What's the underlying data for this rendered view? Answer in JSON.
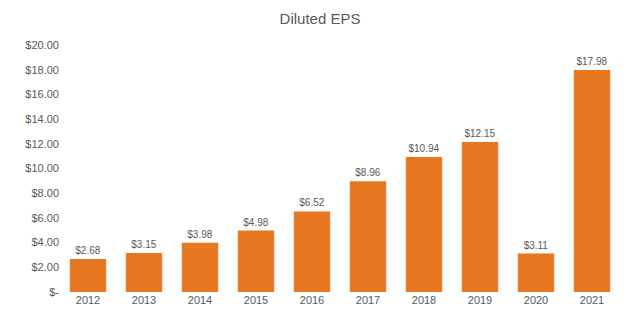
{
  "chart_data": {
    "type": "bar",
    "title": "Diluted EPS",
    "categories": [
      "2012",
      "2013",
      "2014",
      "2015",
      "2016",
      "2017",
      "2018",
      "2019",
      "2020",
      "2021"
    ],
    "values": [
      2.68,
      3.15,
      3.98,
      4.98,
      6.52,
      8.96,
      10.94,
      12.15,
      3.11,
      17.98
    ],
    "value_labels": [
      "$2.68",
      "$3.15",
      "$3.98",
      "$4.98",
      "$6.52",
      "$8.96",
      "$10.94",
      "$12.15",
      "$3.11",
      "$17.98"
    ],
    "data_labels": true,
    "color": "#E87722",
    "ylim": [
      0,
      20
    ],
    "yticks": [
      {
        "value": 0,
        "label": "$-"
      },
      {
        "value": 2,
        "label": "$2.00"
      },
      {
        "value": 4,
        "label": "$4.00"
      },
      {
        "value": 6,
        "label": "$6.00"
      },
      {
        "value": 8,
        "label": "$8.00"
      },
      {
        "value": 10,
        "label": "$10.00"
      },
      {
        "value": 12,
        "label": "$12.00"
      },
      {
        "value": 14,
        "label": "$14.00"
      },
      {
        "value": 16,
        "label": "$16.00"
      },
      {
        "value": 18,
        "label": "$18.00"
      },
      {
        "value": 20,
        "label": "$20.00"
      }
    ],
    "grid": false
  }
}
